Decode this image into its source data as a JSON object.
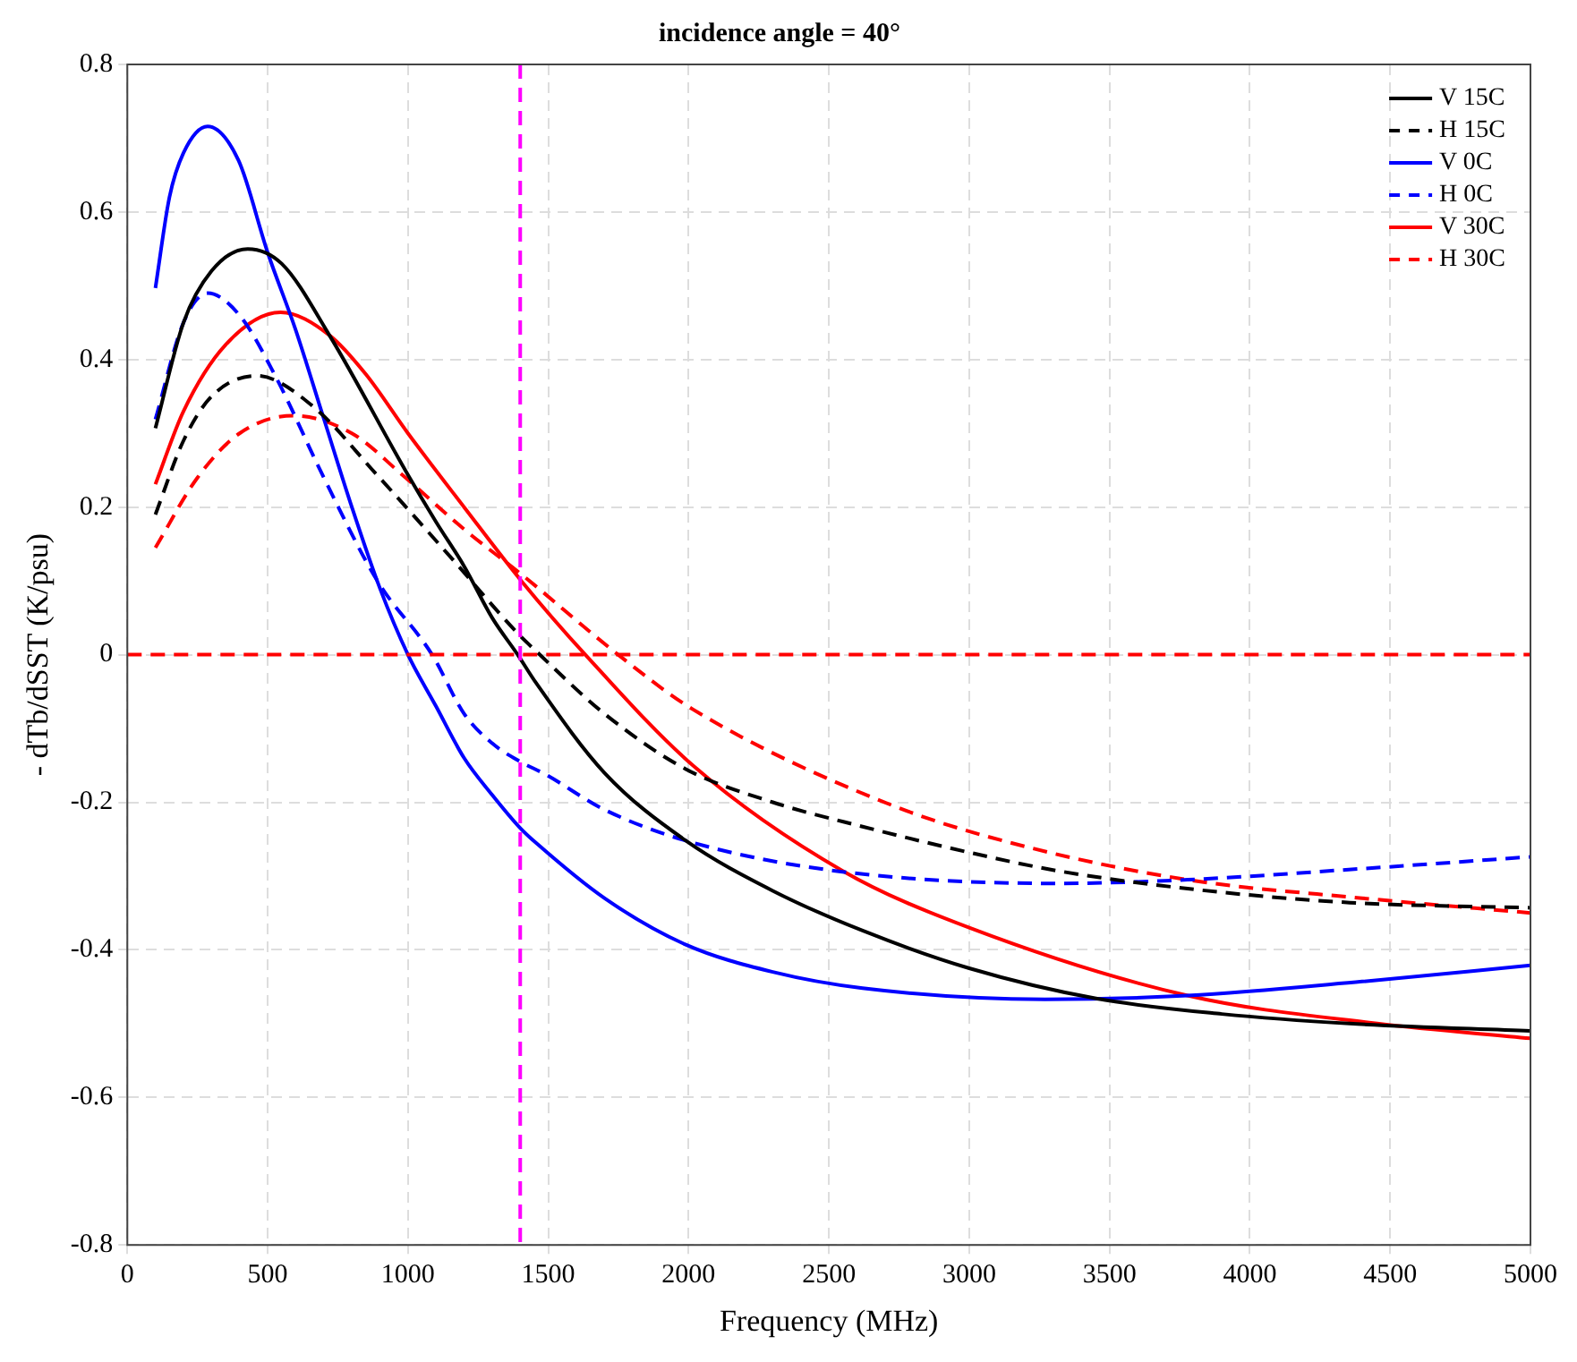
{
  "chart_data": {
    "type": "line",
    "title": "incidence angle = 40°",
    "xlabel": "Frequency (MHz)",
    "ylabel": "- dTb/dSST (K/psu)",
    "xlim": [
      0,
      5000
    ],
    "xticks": [
      0,
      500,
      1000,
      1500,
      2000,
      2500,
      3000,
      3500,
      4000,
      4500,
      5000
    ],
    "ylim": [
      -0.8,
      0.8
    ],
    "yticks": [
      -0.8,
      -0.6,
      -0.4,
      -0.2,
      0,
      0.2,
      0.4,
      0.6,
      0.8
    ],
    "grid": true,
    "legend": "top right",
    "marker": "none",
    "ref_lines": [
      {
        "axis": "y",
        "value": 0,
        "color": "#ff0000",
        "line_style": "dashed"
      },
      {
        "axis": "x",
        "value": 1400,
        "color": "#ff00ff",
        "line_style": "dashed"
      }
    ],
    "series": [
      {
        "name": "V 15C",
        "color": "#000000",
        "line_style": "solid",
        "x": [
          100,
          200,
          300,
          429,
          550,
          720,
          1001,
          1100,
          1200,
          1300,
          1391,
          1456,
          1700,
          1990,
          2300,
          2620,
          3000,
          3452,
          3900,
          4356,
          5000
        ],
        "values": [
          0.307,
          0.45,
          0.52,
          0.55,
          0.53,
          0.433,
          0.243,
          0.18,
          0.12,
          0.05,
          0.0,
          -0.038,
          -0.16,
          -0.252,
          -0.32,
          -0.374,
          -0.425,
          -0.466,
          -0.487,
          -0.5,
          -0.51
        ]
      },
      {
        "name": "H 15C",
        "color": "#000000",
        "line_style": "dashed",
        "x": [
          100,
          200,
          300,
          462,
          657,
          891,
          1150,
          1391,
          1456,
          1700,
          1990,
          2300,
          2620,
          3000,
          3316,
          3800,
          4356,
          5000
        ],
        "values": [
          0.19,
          0.29,
          0.35,
          0.378,
          0.338,
          0.243,
          0.133,
          0.029,
          0.005,
          -0.08,
          -0.155,
          -0.2,
          -0.233,
          -0.268,
          -0.293,
          -0.318,
          -0.336,
          -0.343
        ]
      },
      {
        "name": "V 0C",
        "color": "#0000ff",
        "line_style": "solid",
        "x": [
          100,
          150,
          200,
          286,
          396,
          500,
          600,
          700,
          800,
          900,
          1000,
          1100,
          1200,
          1300,
          1400,
          1456,
          1700,
          1990,
          2300,
          2620,
          3270,
          3778,
          4400,
          5000
        ],
        "values": [
          0.497,
          0.62,
          0.68,
          0.716,
          0.67,
          0.545,
          0.44,
          0.32,
          0.2,
          0.09,
          0.0,
          -0.07,
          -0.14,
          -0.19,
          -0.235,
          -0.255,
          -0.33,
          -0.393,
          -0.43,
          -0.452,
          -0.467,
          -0.462,
          -0.443,
          -0.421
        ]
      },
      {
        "name": "H 0C",
        "color": "#0000ff",
        "line_style": "dashed",
        "x": [
          100,
          200,
          286,
          400,
          527,
          700,
          891,
          1086,
          1200,
          1300,
          1400,
          1489,
          1700,
          1990,
          2523,
          3316,
          3778,
          4400,
          5000
        ],
        "values": [
          0.319,
          0.45,
          0.49,
          0.46,
          0.378,
          0.24,
          0.1,
          0.0,
          -0.08,
          -0.12,
          -0.145,
          -0.162,
          -0.21,
          -0.252,
          -0.293,
          -0.31,
          -0.305,
          -0.29,
          -0.274
        ]
      },
      {
        "name": "V 30C",
        "color": "#ff0000",
        "line_style": "solid",
        "x": [
          100,
          200,
          350,
          546,
          720,
          850,
          1000,
          1200,
          1404,
          1632,
          2015,
          2549,
          3000,
          3778,
          4454,
          5000
        ],
        "values": [
          0.231,
          0.33,
          0.42,
          0.464,
          0.433,
          0.38,
          0.3,
          0.2,
          0.1,
          0.0,
          -0.15,
          -0.293,
          -0.37,
          -0.462,
          -0.5,
          -0.52
        ]
      },
      {
        "name": "H 30C",
        "color": "#ff0000",
        "line_style": "dashed",
        "x": [
          100,
          250,
          400,
          592,
          800,
          982,
          1200,
          1404,
          1749,
          2015,
          2731,
          3200,
          3778,
          4400,
          5000
        ],
        "values": [
          0.145,
          0.24,
          0.3,
          0.324,
          0.3,
          0.243,
          0.17,
          0.109,
          0.0,
          -0.074,
          -0.205,
          -0.26,
          -0.305,
          -0.33,
          -0.35
        ]
      }
    ]
  }
}
